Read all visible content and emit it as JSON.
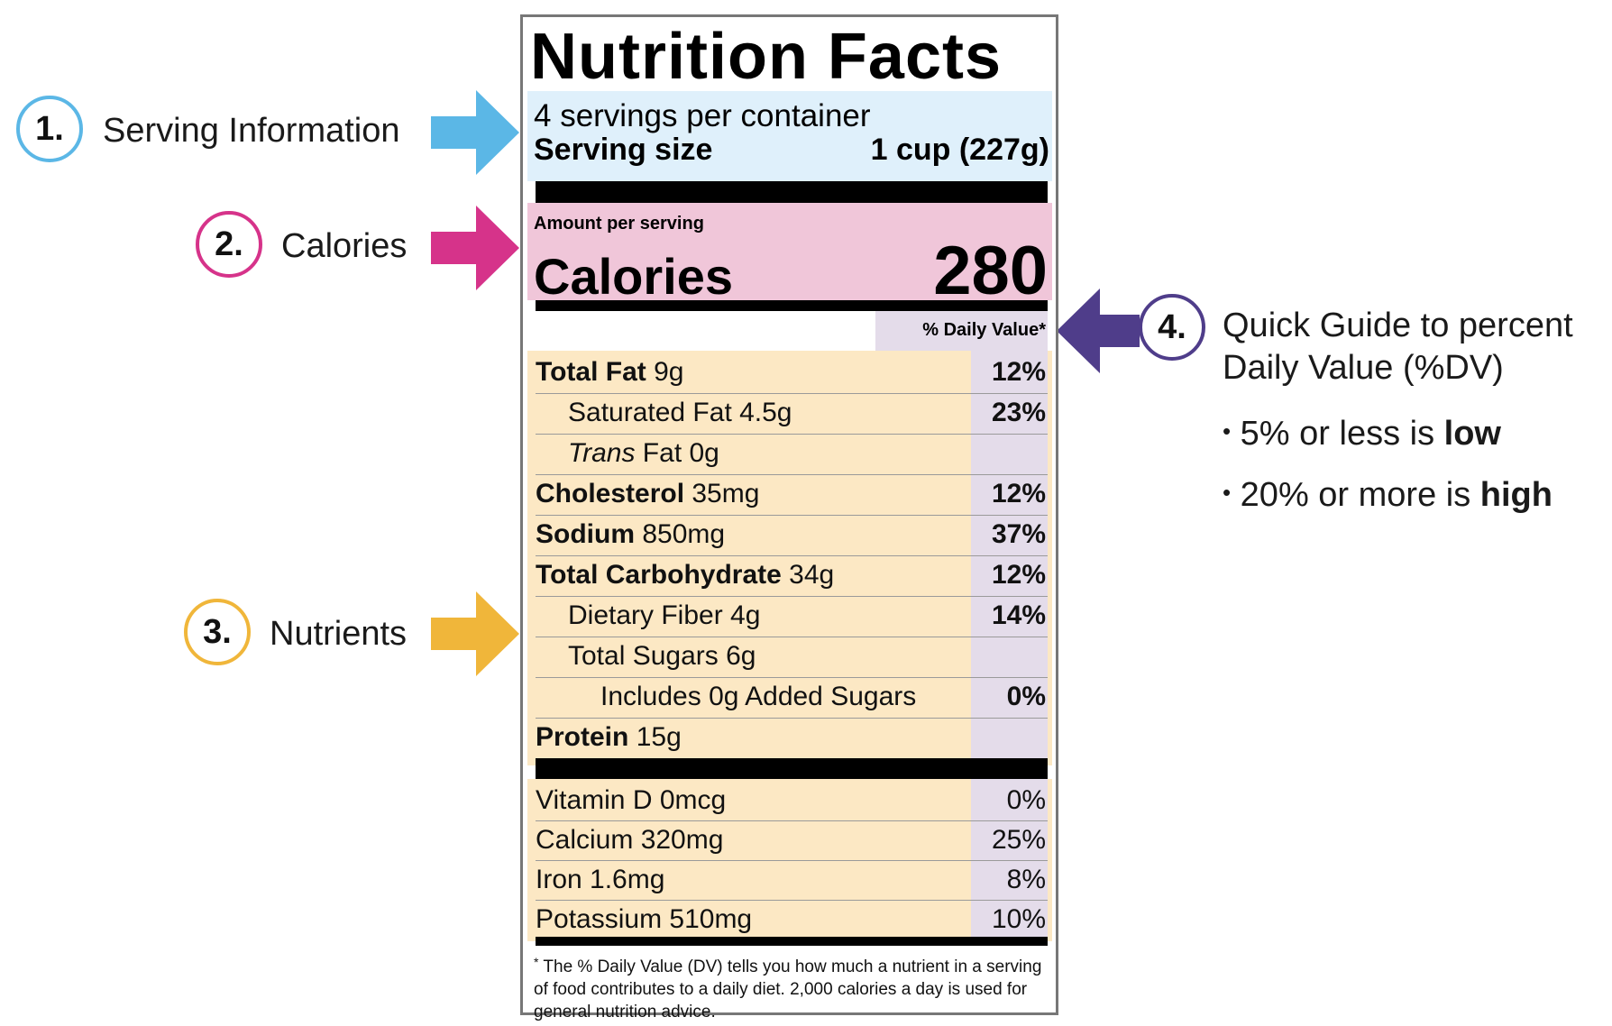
{
  "callouts": [
    {
      "number": "1.",
      "label": "Serving Information",
      "color": "#5bb7e6"
    },
    {
      "number": "2.",
      "label": "Calories",
      "color": "#d6338a"
    },
    {
      "number": "3.",
      "label": "Nutrients",
      "color": "#f0b63a"
    },
    {
      "number": "4.",
      "label_line1": "Quick Guide to percent",
      "label_line2": "Daily Value (%DV)",
      "color": "#4f3d8a"
    }
  ],
  "guide": {
    "item1_prefix": "5% or less is ",
    "item1_bold": "low",
    "item2_prefix": "20% or more is ",
    "item2_bold": "high",
    "bullet": "•"
  },
  "label": {
    "title": "Nutrition Facts",
    "servings_per_container": "4 servings per container",
    "serving_size_label": "Serving size",
    "serving_size_value": "1 cup (227g)",
    "amount_per_serving": "Amount per serving",
    "calories_label": "Calories",
    "calories_value": "280",
    "dv_header": "% Daily Value*",
    "nutrients": [
      {
        "bold": "Total Fat",
        "rest": " 9g",
        "dv": "12%"
      },
      {
        "bold": "",
        "rest": "Saturated Fat 4.5g",
        "dv": "23%"
      },
      {
        "italic": "Trans",
        "rest": " Fat 0g",
        "dv": ""
      },
      {
        "bold": "Cholesterol",
        "rest": " 35mg",
        "dv": "12%"
      },
      {
        "bold": "Sodium",
        "rest": " 850mg",
        "dv": "37%"
      },
      {
        "bold": "Total Carbohydrate",
        "rest": " 34g",
        "dv": "12%"
      },
      {
        "bold": "",
        "rest": "Dietary Fiber 4g",
        "dv": "14%"
      },
      {
        "bold": "",
        "rest": "Total Sugars 6g",
        "dv": ""
      },
      {
        "bold": "",
        "rest": "Includes 0g Added Sugars",
        "dv": "0%"
      },
      {
        "bold": "Protein",
        "rest": " 15g",
        "dv": ""
      }
    ],
    "vitamins": [
      {
        "name": "Vitamin D 0mcg",
        "dv": "0%"
      },
      {
        "name": "Calcium 320mg",
        "dv": "25%"
      },
      {
        "name": "Iron 1.6mg",
        "dv": "8%"
      },
      {
        "name": "Potassium 510mg",
        "dv": "10%"
      }
    ],
    "footnote_marker": "*",
    "footnote": "The % Daily Value (DV) tells you how much a nutrient in a serving of food contributes to a daily diet. 2,000 calories a day is used for general nutrition advice."
  },
  "colors": {
    "serving_band": "#dff0fb",
    "calories_band": "#f0c6d9",
    "nutrient_band": "#fce8c4",
    "dv_band": "#e4dcea"
  }
}
